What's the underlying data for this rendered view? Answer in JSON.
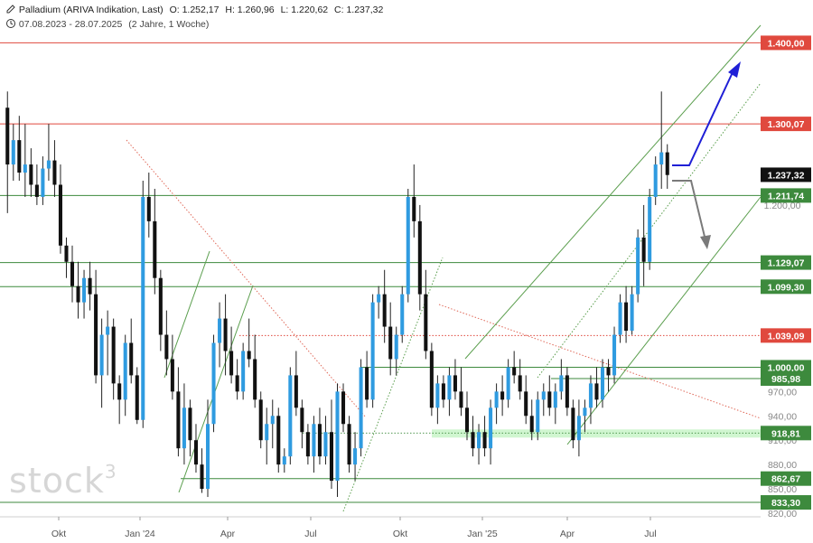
{
  "header": {
    "instrument": "Palladium (ARIVA Indikation, Last)",
    "open": "O: 1.252,17",
    "high": "H: 1.260,96",
    "low": "L: 1.220,62",
    "close": "C: 1.237,32",
    "range": "07.08.2023 - 28.07.2025",
    "period": "(2 Jahre, 1 Woche)"
  },
  "watermark": {
    "text": "stock",
    "sup": "3"
  },
  "colors": {
    "up": "#2f9be0",
    "down": "#111111",
    "wick": "#222222",
    "resistance": "#e0493e",
    "support": "#3d8a3d",
    "channel": "#5a9e4d",
    "trendline_down": "#e06a5a",
    "arrow_up": "#1f1fd6",
    "arrow_down": "#7a7a7a",
    "zone": "#c8f5c8",
    "current": "#111111"
  },
  "chart_data": {
    "type": "candlestick",
    "title": "Palladium (ARIVA Indikation, Last)",
    "xlabel": "",
    "ylabel": "",
    "ylim": [
      820,
      1435
    ],
    "x_ticks": [
      "Okt",
      "Jan '24",
      "Apr",
      "Jul",
      "Okt",
      "Jan '25",
      "Apr",
      "Jul"
    ],
    "y_ticks": [
      "820,00",
      "850,00",
      "880,00",
      "910,00",
      "940,00",
      "970,00",
      "1.200,00"
    ],
    "y_tick_values": [
      820,
      850,
      880,
      910,
      940,
      970,
      1200
    ],
    "grid": false,
    "candles": [
      [
        1320,
        1340,
        1190,
        1250
      ],
      [
        1250,
        1300,
        1230,
        1280
      ],
      [
        1280,
        1310,
        1230,
        1240
      ],
      [
        1240,
        1300,
        1210,
        1250
      ],
      [
        1250,
        1270,
        1210,
        1225
      ],
      [
        1225,
        1250,
        1200,
        1210
      ],
      [
        1210,
        1260,
        1200,
        1245
      ],
      [
        1245,
        1300,
        1230,
        1255
      ],
      [
        1255,
        1280,
        1210,
        1225
      ],
      [
        1225,
        1250,
        1140,
        1150
      ],
      [
        1150,
        1160,
        1110,
        1130
      ],
      [
        1130,
        1150,
        1080,
        1100
      ],
      [
        1100,
        1130,
        1060,
        1080
      ],
      [
        1080,
        1120,
        1060,
        1110
      ],
      [
        1110,
        1130,
        1070,
        1090
      ],
      [
        1090,
        1120,
        980,
        990
      ],
      [
        990,
        1060,
        950,
        1040
      ],
      [
        1040,
        1070,
        990,
        1050
      ],
      [
        1050,
        1060,
        960,
        980
      ],
      [
        980,
        990,
        930,
        960
      ],
      [
        960,
        1040,
        940,
        1030
      ],
      [
        1030,
        1060,
        980,
        990
      ],
      [
        990,
        1000,
        930,
        935
      ],
      [
        935,
        1230,
        925,
        1210
      ],
      [
        1210,
        1240,
        1160,
        1180
      ],
      [
        1180,
        1220,
        1090,
        1110
      ],
      [
        1110,
        1120,
        1020,
        1040
      ],
      [
        1040,
        1070,
        990,
        1010
      ],
      [
        1010,
        1040,
        960,
        970
      ],
      [
        970,
        1000,
        890,
        900
      ],
      [
        900,
        980,
        880,
        950
      ],
      [
        950,
        960,
        890,
        910
      ],
      [
        910,
        930,
        870,
        880
      ],
      [
        880,
        900,
        845,
        850
      ],
      [
        850,
        960,
        840,
        930
      ],
      [
        930,
        1040,
        920,
        1030
      ],
      [
        1030,
        1080,
        1000,
        1060
      ],
      [
        1060,
        1090,
        990,
        1020
      ],
      [
        1020,
        1050,
        980,
        990
      ],
      [
        990,
        1010,
        960,
        970
      ],
      [
        970,
        1030,
        960,
        1020
      ],
      [
        1020,
        1060,
        1000,
        1010
      ],
      [
        1010,
        1040,
        950,
        960
      ],
      [
        960,
        970,
        900,
        910
      ],
      [
        910,
        950,
        880,
        930
      ],
      [
        930,
        960,
        900,
        940
      ],
      [
        940,
        950,
        870,
        880
      ],
      [
        880,
        900,
        870,
        890
      ],
      [
        890,
        1000,
        880,
        990
      ],
      [
        990,
        1020,
        940,
        950
      ],
      [
        950,
        960,
        900,
        920
      ],
      [
        920,
        930,
        880,
        890
      ],
      [
        890,
        940,
        870,
        930
      ],
      [
        930,
        950,
        880,
        890
      ],
      [
        890,
        940,
        880,
        920
      ],
      [
        920,
        960,
        850,
        860
      ],
      [
        860,
        980,
        840,
        970
      ],
      [
        970,
        980,
        920,
        930
      ],
      [
        930,
        940,
        870,
        880
      ],
      [
        880,
        920,
        860,
        900
      ],
      [
        900,
        1010,
        890,
        1000
      ],
      [
        1000,
        1020,
        950,
        960
      ],
      [
        960,
        1090,
        950,
        1080
      ],
      [
        1080,
        1100,
        1060,
        1090
      ],
      [
        1090,
        1120,
        1030,
        1050
      ],
      [
        1050,
        1080,
        990,
        1010
      ],
      [
        1010,
        1050,
        990,
        1040
      ],
      [
        1040,
        1100,
        1030,
        1090
      ],
      [
        1090,
        1220,
        1080,
        1210
      ],
      [
        1210,
        1250,
        1160,
        1180
      ],
      [
        1180,
        1200,
        1070,
        1090
      ],
      [
        1090,
        1120,
        1010,
        1020
      ],
      [
        1020,
        1030,
        940,
        950
      ],
      [
        950,
        990,
        930,
        980
      ],
      [
        980,
        990,
        950,
        960
      ],
      [
        960,
        1000,
        940,
        990
      ],
      [
        990,
        1010,
        960,
        970
      ],
      [
        970,
        1000,
        940,
        950
      ],
      [
        950,
        970,
        910,
        920
      ],
      [
        920,
        940,
        890,
        900
      ],
      [
        900,
        930,
        880,
        920
      ],
      [
        920,
        940,
        890,
        900
      ],
      [
        900,
        960,
        880,
        950
      ],
      [
        950,
        980,
        930,
        970
      ],
      [
        970,
        990,
        940,
        960
      ],
      [
        960,
        1010,
        950,
        1000
      ],
      [
        1000,
        1020,
        980,
        990
      ],
      [
        990,
        1010,
        960,
        970
      ],
      [
        970,
        990,
        930,
        940
      ],
      [
        940,
        960,
        910,
        920
      ],
      [
        920,
        970,
        910,
        960
      ],
      [
        960,
        980,
        940,
        970
      ],
      [
        970,
        990,
        940,
        950
      ],
      [
        950,
        980,
        930,
        970
      ],
      [
        970,
        1010,
        960,
        990
      ],
      [
        990,
        1000,
        940,
        950
      ],
      [
        950,
        960,
        900,
        910
      ],
      [
        910,
        960,
        890,
        940
      ],
      [
        940,
        960,
        920,
        950
      ],
      [
        950,
        990,
        930,
        980
      ],
      [
        980,
        1000,
        950,
        960
      ],
      [
        960,
        1010,
        950,
        1000
      ],
      [
        1000,
        1010,
        970,
        990
      ],
      [
        990,
        1050,
        980,
        1040
      ],
      [
        1040,
        1090,
        1030,
        1080
      ],
      [
        1080,
        1100,
        1030,
        1045
      ],
      [
        1045,
        1100,
        1040,
        1090
      ],
      [
        1090,
        1170,
        1080,
        1160
      ],
      [
        1160,
        1200,
        1100,
        1130
      ],
      [
        1130,
        1220,
        1120,
        1210
      ],
      [
        1210,
        1260,
        1200,
        1250
      ],
      [
        1250,
        1340,
        1220,
        1265
      ],
      [
        1265,
        1275,
        1220,
        1237
      ]
    ],
    "hlines": [
      {
        "value": 1400.0,
        "label": "1.400,00",
        "kind": "resistance"
      },
      {
        "value": 1300.07,
        "label": "1.300,07",
        "kind": "resistance"
      },
      {
        "value": 1211.74,
        "label": "1.211,74",
        "kind": "support"
      },
      {
        "value": 1129.07,
        "label": "1.129,07",
        "kind": "support"
      },
      {
        "value": 1099.3,
        "label": "1.099,30",
        "kind": "support"
      },
      {
        "value": 1039.09,
        "label": "1.039,09",
        "kind": "dotted"
      },
      {
        "value": 1000.0,
        "label": "1.000,00",
        "kind": "support"
      },
      {
        "value": 985.98,
        "label": "985,98",
        "kind": "support"
      },
      {
        "value": 918.81,
        "label": "918,81",
        "kind": "zone"
      },
      {
        "value": 862.67,
        "label": "862,67",
        "kind": "support"
      },
      {
        "value": 833.3,
        "label": "833,30",
        "kind": "support"
      }
    ],
    "current": {
      "value": 1237.32,
      "label": "1.237,32"
    }
  }
}
